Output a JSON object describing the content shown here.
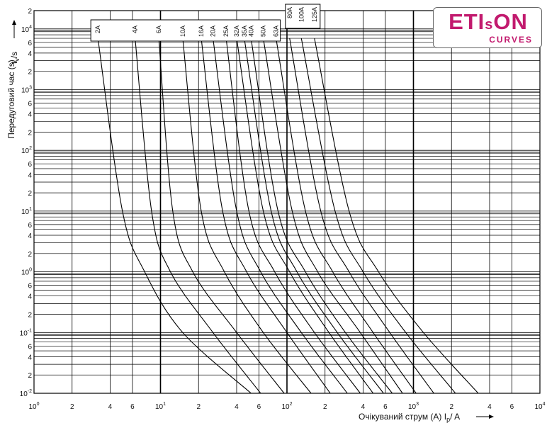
{
  "brand": {
    "name_part1": "ETI",
    "name_small": "s",
    "name_part2": "ON",
    "subtitle": "CURVES",
    "color": "#c21a6e"
  },
  "chart_data": {
    "type": "line",
    "xscale": "log",
    "yscale": "log",
    "xlim": [
      1,
      10000
    ],
    "ylim": [
      0.01,
      20000
    ],
    "xlabel_text": "Очікуваний струм (А) I",
    "xlabel_sub": "p",
    "xlabel_unit": "/ A",
    "ylabel": "Передуговий час (s)",
    "yunit_t": "t",
    "yunit_sub": "v",
    "yunit_rest": "/s",
    "grid": true,
    "line_color": "#000000",
    "x_tick_labels": [
      {
        "x": 1,
        "base": "10",
        "exp": "0"
      },
      {
        "x": 2,
        "base": "2"
      },
      {
        "x": 4,
        "base": "4"
      },
      {
        "x": 6,
        "base": "6"
      },
      {
        "x": 10,
        "base": "10",
        "exp": "1"
      },
      {
        "x": 20,
        "base": "2"
      },
      {
        "x": 40,
        "base": "4"
      },
      {
        "x": 60,
        "base": "6"
      },
      {
        "x": 100,
        "base": "10",
        "exp": "2"
      },
      {
        "x": 200,
        "base": "2"
      },
      {
        "x": 400,
        "base": "4"
      },
      {
        "x": 600,
        "base": "6"
      },
      {
        "x": 1000,
        "base": "10",
        "exp": "3"
      },
      {
        "x": 2000,
        "base": "2"
      },
      {
        "x": 4000,
        "base": "4"
      },
      {
        "x": 6000,
        "base": "6"
      },
      {
        "x": 10000,
        "base": "10",
        "exp": "4"
      }
    ],
    "y_tick_labels": [
      {
        "y": 20000,
        "base": "2"
      },
      {
        "y": 10000,
        "base": "10",
        "exp": "4"
      },
      {
        "y": 6000,
        "base": "6"
      },
      {
        "y": 4000,
        "base": "4"
      },
      {
        "y": 2000,
        "base": "2"
      },
      {
        "y": 1000,
        "base": "10",
        "exp": "3"
      },
      {
        "y": 600,
        "base": "6"
      },
      {
        "y": 400,
        "base": "4"
      },
      {
        "y": 200,
        "base": "2"
      },
      {
        "y": 100,
        "base": "10",
        "exp": "2"
      },
      {
        "y": 60,
        "base": "6"
      },
      {
        "y": 40,
        "base": "4"
      },
      {
        "y": 20,
        "base": "2"
      },
      {
        "y": 10,
        "base": "10",
        "exp": "1"
      },
      {
        "y": 6,
        "base": "6"
      },
      {
        "y": 4,
        "base": "4"
      },
      {
        "y": 2,
        "base": "2"
      },
      {
        "y": 1,
        "base": "10",
        "exp": "0"
      },
      {
        "y": 0.6,
        "base": "6"
      },
      {
        "y": 0.4,
        "base": "4"
      },
      {
        "y": 0.2,
        "base": "2"
      },
      {
        "y": 0.1,
        "base": "10",
        "exp": "-1"
      },
      {
        "y": 0.06,
        "base": "6"
      },
      {
        "y": 0.04,
        "base": "4"
      },
      {
        "y": 0.02,
        "base": "2"
      },
      {
        "y": 0.01,
        "base": "10",
        "exp": "-2"
      }
    ],
    "series": [
      {
        "name": "2A",
        "x": [
          3.2,
          5.0,
          7.5,
          15,
          52
        ],
        "y": [
          7000,
          10,
          1,
          0.1,
          0.01
        ]
      },
      {
        "name": "4A",
        "x": [
          6.3,
          8.5,
          12,
          26,
          62
        ],
        "y": [
          7000,
          10,
          1,
          0.1,
          0.01
        ]
      },
      {
        "name": "6A",
        "x": [
          9.7,
          12.5,
          18,
          40,
          95
        ],
        "y": [
          7000,
          10,
          1,
          0.1,
          0.01
        ]
      },
      {
        "name": "10A",
        "x": [
          15,
          21,
          32,
          65,
          155
        ],
        "y": [
          7000,
          10,
          1,
          0.1,
          0.01
        ]
      },
      {
        "name": "16A",
        "x": [
          21,
          31,
          48,
          100,
          220
        ],
        "y": [
          7000,
          10,
          1,
          0.1,
          0.01
        ]
      },
      {
        "name": "20A",
        "x": [
          26,
          40,
          62,
          130,
          300
        ],
        "y": [
          7000,
          10,
          1,
          0.1,
          0.01
        ]
      },
      {
        "name": "25A",
        "x": [
          33,
          50,
          80,
          165,
          380
        ],
        "y": [
          7000,
          10,
          1,
          0.1,
          0.01
        ]
      },
      {
        "name": "32A",
        "x": [
          40,
          65,
          105,
          215,
          480
        ],
        "y": [
          7000,
          10,
          1,
          0.1,
          0.01
        ]
      },
      {
        "name": "35A",
        "x": [
          46,
          75,
          120,
          250,
          580
        ],
        "y": [
          7000,
          10,
          1,
          0.1,
          0.01
        ]
      },
      {
        "name": "40A",
        "x": [
          52,
          85,
          140,
          290,
          680
        ],
        "y": [
          7000,
          10,
          1,
          0.1,
          0.01
        ]
      },
      {
        "name": "50A",
        "x": [
          65,
          110,
          175,
          380,
          820
        ],
        "y": [
          7000,
          10,
          1,
          0.1,
          0.01
        ]
      },
      {
        "name": "63A",
        "x": [
          82,
          140,
          230,
          480,
          1050
        ],
        "y": [
          7000,
          10,
          1,
          0.1,
          0.01
        ]
      },
      {
        "name": "80A",
        "x": [
          105,
          185,
          310,
          650,
          1450
        ],
        "y": [
          7000,
          10,
          1,
          0.1,
          0.01
        ]
      },
      {
        "name": "100A",
        "x": [
          130,
          240,
          400,
          870,
          2150
        ],
        "y": [
          7000,
          10,
          1,
          0.1,
          0.01
        ]
      },
      {
        "name": "125A",
        "x": [
          165,
          310,
          530,
          1200,
          3250
        ],
        "y": [
          7000,
          10,
          1,
          0.1,
          0.01
        ]
      }
    ]
  }
}
